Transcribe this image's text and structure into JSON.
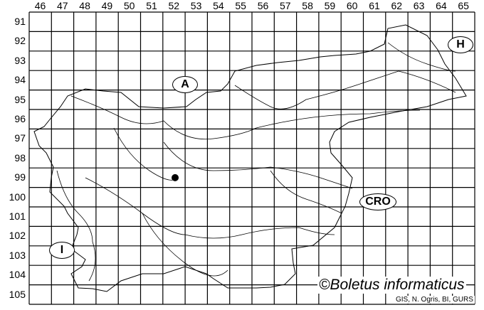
{
  "map": {
    "column_labels": [
      "46",
      "47",
      "48",
      "49",
      "50",
      "51",
      "52",
      "53",
      "54",
      "55",
      "56",
      "57",
      "58",
      "59",
      "60",
      "61",
      "62",
      "63",
      "64",
      "65"
    ],
    "row_labels": [
      "91",
      "92",
      "93",
      "94",
      "95",
      "96",
      "97",
      "98",
      "99",
      "100",
      "101",
      "102",
      "103",
      "104",
      "105"
    ],
    "neighbors": [
      {
        "label": "A"
      },
      {
        "label": "H"
      },
      {
        "label": "CRO"
      },
      {
        "label": "I"
      }
    ],
    "records": [
      {
        "column": "52",
        "row": "99"
      }
    ],
    "copyright": "©Boletus informaticus",
    "credit": "GIS, N. Ogris, BI, GURS",
    "colors": {
      "lines": "#000000",
      "background": "#ffffff",
      "record_dot": "#000000"
    }
  }
}
